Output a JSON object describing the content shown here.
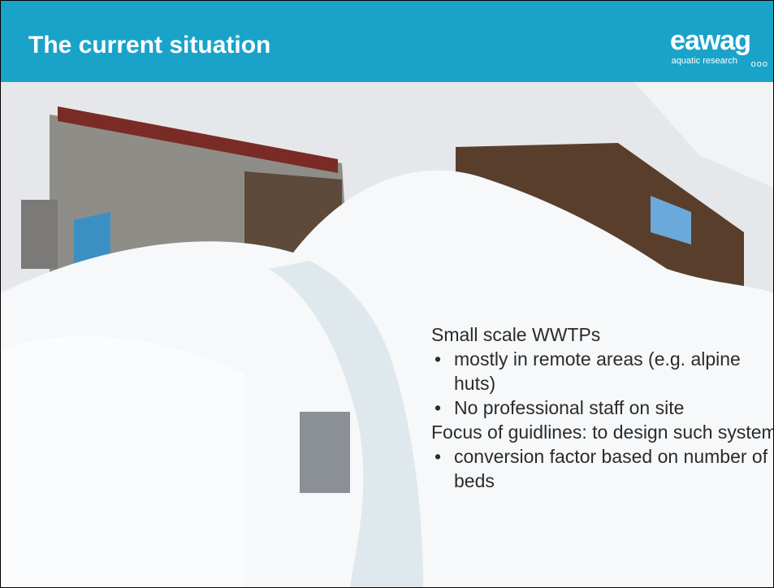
{
  "header": {
    "title": "The current situation",
    "logo": {
      "name": "eawag",
      "tagline": "aquatic research"
    }
  },
  "body": {
    "blocks": [
      {
        "heading": "Small scale WWTPs",
        "bullets": [
          "mostly in remote areas (e.g. alpine huts)",
          "No professional staff on site"
        ]
      },
      {
        "heading": "Focus of guidlines: to design such system",
        "bullets": [
          "conversion factor based on number of beds"
        ]
      }
    ]
  }
}
